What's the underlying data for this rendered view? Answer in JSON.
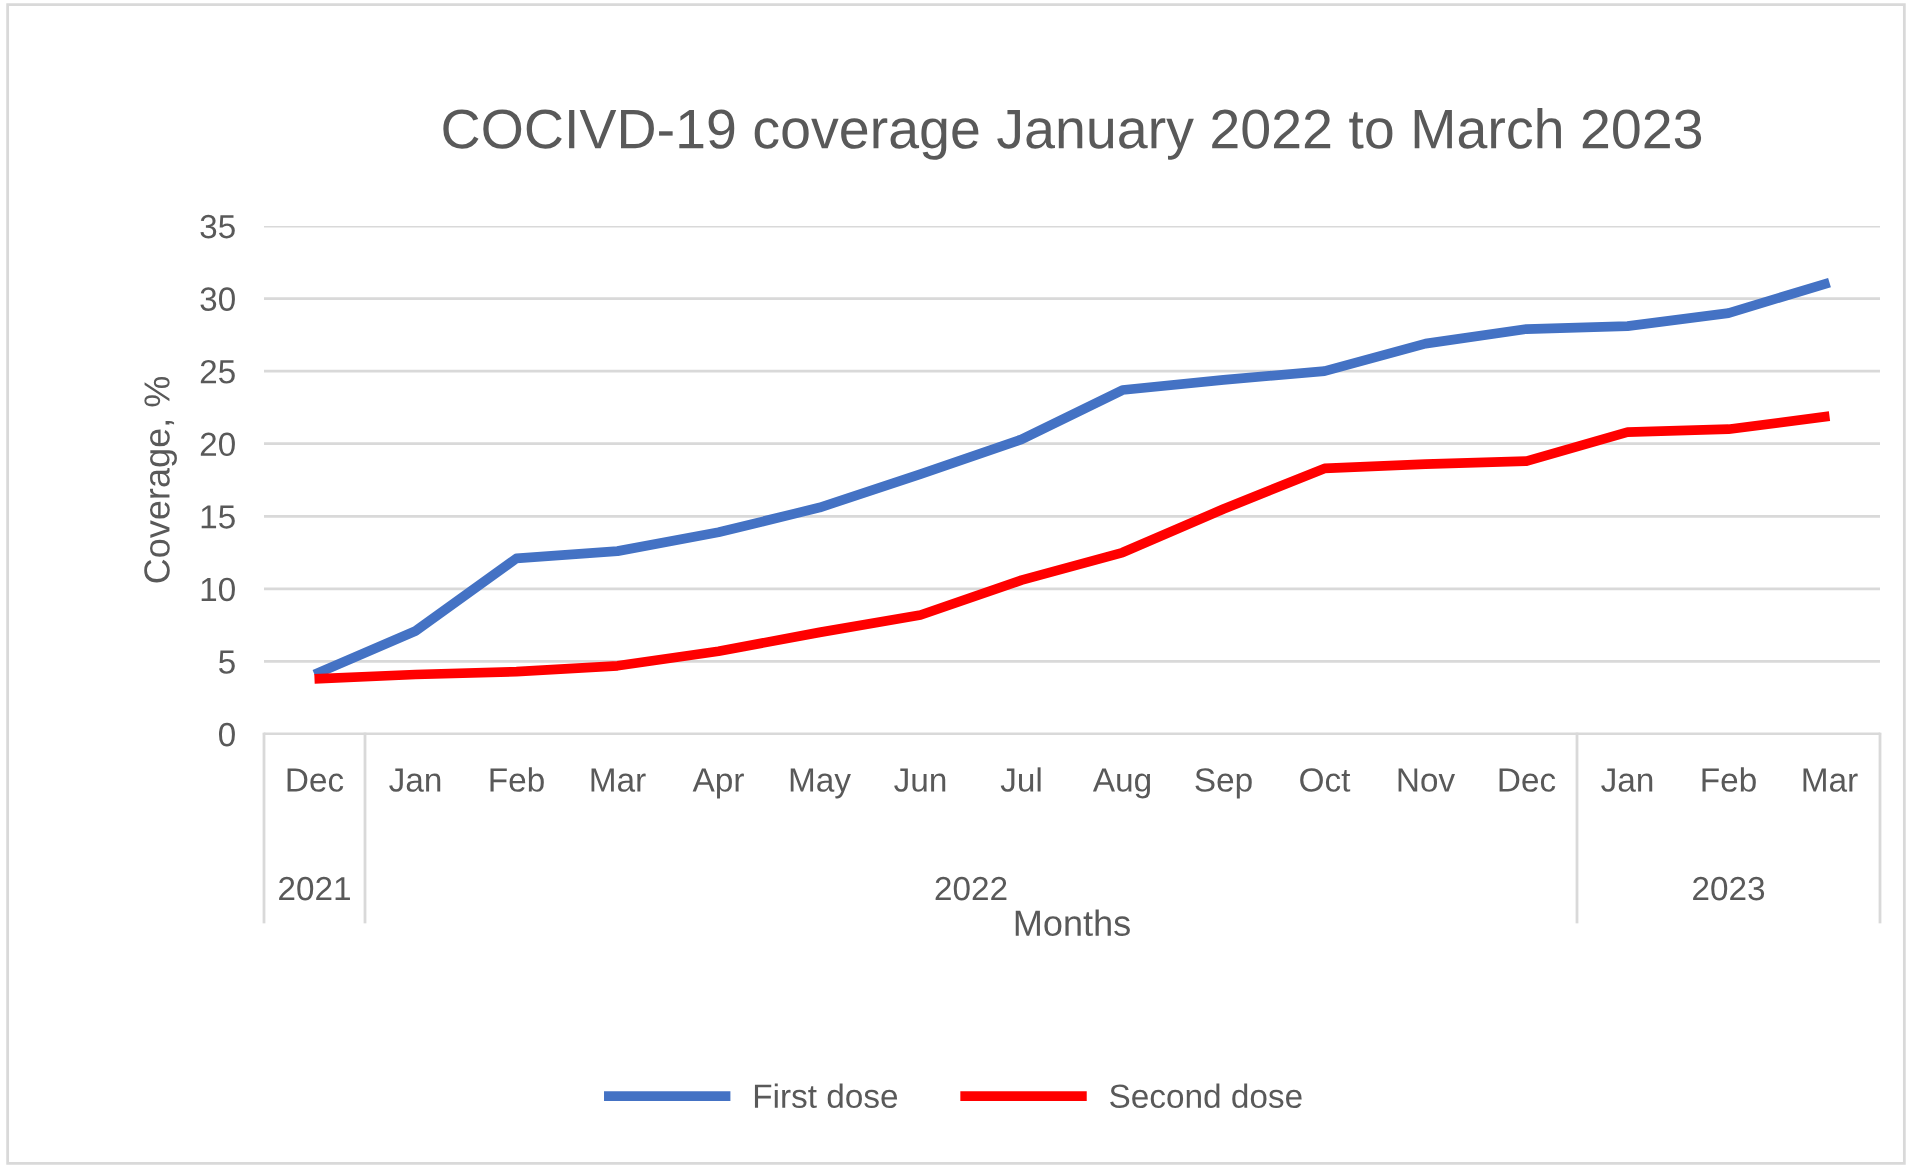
{
  "chart_data": {
    "type": "line",
    "title": "COCIVD-19 coverage January 2022 to March 2023",
    "xlabel": "Months",
    "ylabel": "Coverage, %",
    "categories": [
      "Dec",
      "Jan",
      "Feb",
      "Mar",
      "Apr",
      "May",
      "Jun",
      "Jul",
      "Aug",
      "Sep",
      "Oct",
      "Nov",
      "Dec",
      "Jan",
      "Feb",
      "Mar"
    ],
    "annotations": [
      "2021",
      "2022",
      "2023"
    ],
    "series": [
      {
        "name": "First dose",
        "color": "#4472c4",
        "values": [
          4.1,
          7.1,
          12.1,
          12.6,
          13.9,
          15.6,
          17.9,
          20.3,
          23.7,
          24.4,
          25.0,
          26.9,
          27.9,
          28.1,
          29.0,
          31.1
        ]
      },
      {
        "name": "Second dose",
        "color": "#ff0000",
        "values": [
          3.8,
          4.1,
          4.3,
          4.7,
          5.7,
          7.0,
          8.2,
          10.6,
          12.5,
          15.5,
          18.3,
          18.6,
          18.8,
          20.8,
          21.0,
          21.9
        ]
      }
    ],
    "ylim": [
      0,
      35
    ],
    "yticks": [
      0,
      5,
      10,
      15,
      20,
      25,
      30,
      35
    ],
    "grid": "y",
    "legend": "bottom",
    "marker": "none",
    "line_style": "solid"
  }
}
